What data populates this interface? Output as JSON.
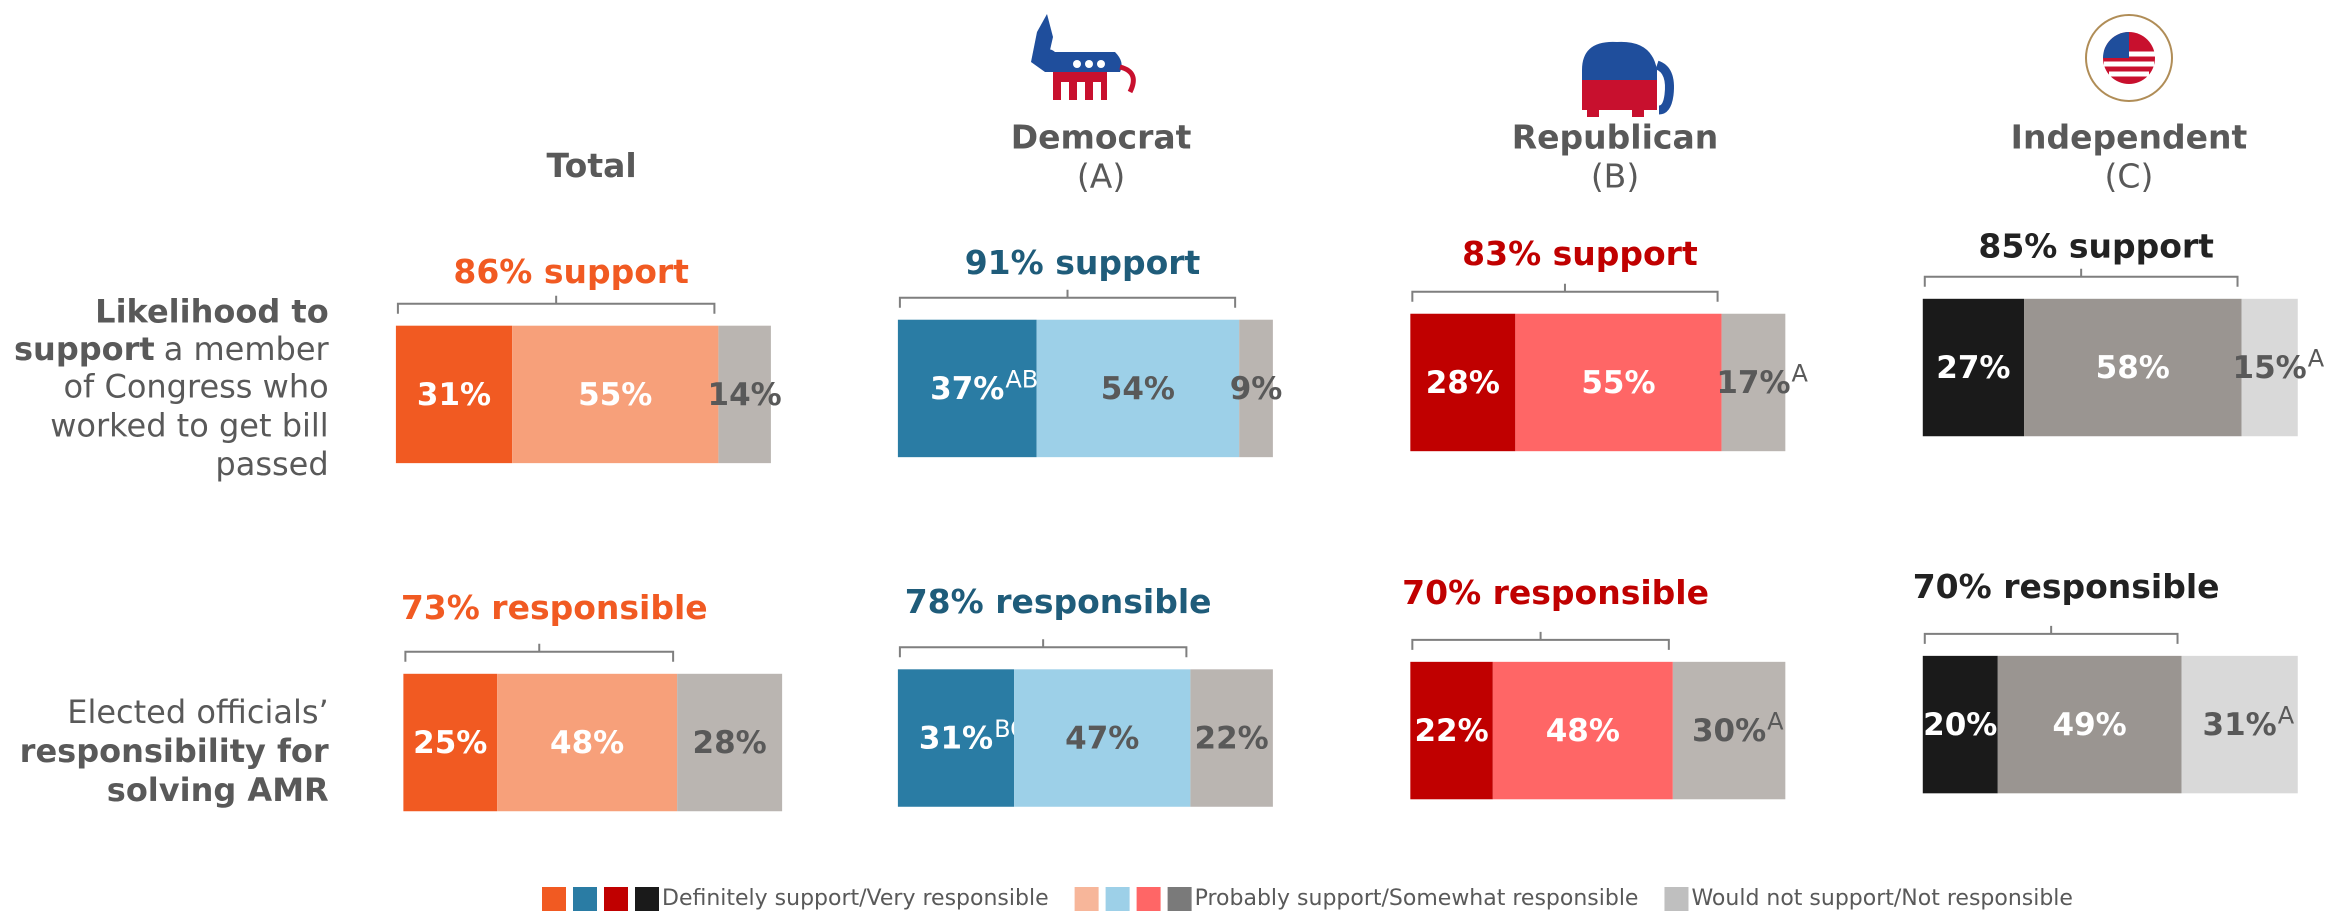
{
  "columns": [
    {
      "title": "Total"
    },
    {
      "title": "Democrat",
      "code": "(A)"
    },
    {
      "title": "Republican",
      "code": "(B)"
    },
    {
      "title": "Independent",
      "code": "(C)"
    }
  ],
  "rows": [
    {
      "lines": [
        [
          {
            "text": "Likelihood to",
            "bold": true
          }
        ],
        [
          {
            "text": "support",
            "bold": true
          },
          {
            "text": "a member"
          }
        ],
        [
          {
            "text": "of Congress who"
          }
        ],
        [
          {
            "text": "worked to get bill"
          }
        ],
        [
          {
            "text": "passed"
          }
        ]
      ]
    },
    {
      "lines": [
        [
          {
            "text": "Elected officials’"
          }
        ],
        [
          {
            "text": "responsibility for",
            "bold": true
          }
        ],
        [
          {
            "text": "solving AMR",
            "bold": true
          }
        ]
      ]
    }
  ],
  "panels": [
    [
      {
        "summary": "86% support",
        "summary_color": "#f15a22",
        "segments": [
          {
            "value": 31,
            "label": "31%",
            "color": "#f15a22",
            "text_color": "#ffffff"
          },
          {
            "value": 55,
            "label": "55%",
            "color": "#f7a07a",
            "text_color": "#ffffff"
          },
          {
            "value": 14,
            "label": "14%",
            "color": "#bab5b1",
            "text_color": "#595959"
          }
        ]
      },
      {
        "summary": "91% support",
        "summary_color": "#1f5c7a",
        "segments": [
          {
            "value": 37,
            "label": "37%",
            "sig": "AB",
            "color": "#2a7ca4",
            "text_color": "#ffffff"
          },
          {
            "value": 54,
            "label": "54%",
            "color": "#9dd0e8",
            "text_color": "#595959"
          },
          {
            "value": 9,
            "label": "9%",
            "color": "#bab5b1",
            "text_color": "#595959"
          }
        ]
      },
      {
        "summary": "83% support",
        "summary_color": "#c00000",
        "segments": [
          {
            "value": 28,
            "label": "28%",
            "color": "#c00000",
            "text_color": "#ffffff"
          },
          {
            "value": 55,
            "label": "55%",
            "color": "#ff6666",
            "text_color": "#ffffff"
          },
          {
            "value": 17,
            "label": "17%",
            "sig": "A",
            "color": "#bab5b1",
            "text_color": "#595959"
          }
        ]
      },
      {
        "summary": "85% support",
        "summary_color": "#222222",
        "segments": [
          {
            "value": 27,
            "label": "27%",
            "color": "#1a1a1a",
            "text_color": "#ffffff"
          },
          {
            "value": 58,
            "label": "58%",
            "color": "#9a9591",
            "text_color": "#ffffff"
          },
          {
            "value": 15,
            "label": "15%",
            "sig": "A",
            "color": "#d9d9d9",
            "text_color": "#595959"
          }
        ]
      }
    ],
    [
      {
        "summary": "73% responsible",
        "summary_color": "#f15a22",
        "segments": [
          {
            "value": 25,
            "label": "25%",
            "color": "#f15a22",
            "text_color": "#ffffff"
          },
          {
            "value": 48,
            "label": "48%",
            "color": "#f7a07a",
            "text_color": "#ffffff"
          },
          {
            "value": 28,
            "label": "28%",
            "color": "#bab5b1",
            "text_color": "#595959"
          }
        ]
      },
      {
        "summary": "78% responsible",
        "summary_color": "#1f5c7a",
        "segments": [
          {
            "value": 31,
            "label": "31%",
            "sig": "BC",
            "color": "#2a7ca4",
            "text_color": "#ffffff"
          },
          {
            "value": 47,
            "label": "47%",
            "color": "#9dd0e8",
            "text_color": "#595959"
          },
          {
            "value": 22,
            "label": "22%",
            "color": "#bab5b1",
            "text_color": "#595959"
          }
        ]
      },
      {
        "summary": "70% responsible",
        "summary_color": "#c00000",
        "segments": [
          {
            "value": 22,
            "label": "22%",
            "color": "#c00000",
            "text_color": "#ffffff"
          },
          {
            "value": 48,
            "label": "48%",
            "color": "#ff6666",
            "text_color": "#ffffff"
          },
          {
            "value": 30,
            "label": "30%",
            "sig": "A",
            "color": "#bab5b1",
            "text_color": "#595959"
          }
        ]
      },
      {
        "summary": "70% responsible",
        "summary_color": "#222222",
        "segments": [
          {
            "value": 20,
            "label": "20%",
            "color": "#1a1a1a",
            "text_color": "#ffffff"
          },
          {
            "value": 49,
            "label": "49%",
            "color": "#9a9591",
            "text_color": "#ffffff"
          },
          {
            "value": 31,
            "label": "31%",
            "sig": "A",
            "color": "#d9d9d9",
            "text_color": "#595959"
          }
        ]
      }
    ]
  ],
  "legend": [
    {
      "label": "Definitely support/Very responsible",
      "colors": [
        "#f15a22",
        "#2a7ca4",
        "#c00000",
        "#1a1a1a"
      ]
    },
    {
      "label": "Probably support/Somewhat responsible",
      "colors": [
        "#f7b69a",
        "#9dd0e8",
        "#ff6666",
        "#7a7a7a"
      ]
    },
    {
      "label": "Would not support/Not responsible",
      "colors": [
        "#bfbfbf"
      ]
    }
  ]
}
